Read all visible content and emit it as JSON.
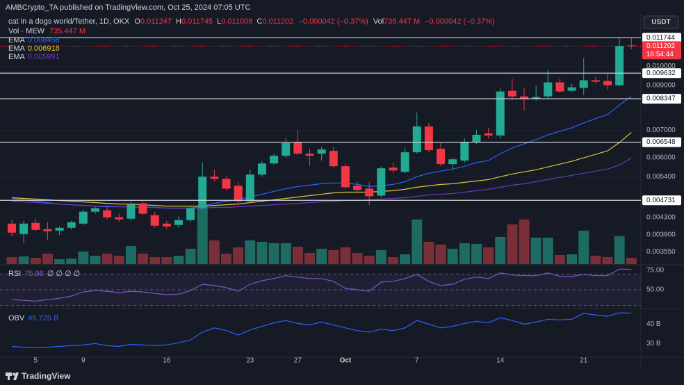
{
  "header": {
    "published": "AMBCrypto_TA published on TradingView.com, Oct 25, 2024 07:05 UTC",
    "currency": "USDT",
    "brand": "TradingView"
  },
  "chart_data": [
    {
      "type": "candlestick",
      "title": "cat in a dogs world/Tether, 1D, OKX",
      "ohlc_labels": [
        "O",
        "H",
        "L",
        "C"
      ],
      "change": "−0.000042 (−0.37%)",
      "log": true,
      "up_color": "#22ab94",
      "down_color": "#f23645",
      "categories": [
        null,
        null,
        "5",
        null,
        null,
        null,
        "9",
        null,
        null,
        null,
        null,
        null,
        null,
        "16",
        null,
        null,
        null,
        null,
        null,
        null,
        "23",
        null,
        null,
        null,
        "27",
        null,
        null,
        null,
        "Oct",
        null,
        null,
        null,
        null,
        null,
        "7",
        null,
        null,
        null,
        null,
        null,
        null,
        "14",
        null,
        null,
        null,
        null,
        null,
        null,
        "21",
        null,
        null,
        null,
        null
      ],
      "open": [
        0.004154,
        0.003919,
        0.004171,
        0.004027,
        0.003995,
        0.004058,
        0.004154,
        0.00444,
        0.004475,
        0.004303,
        0.00427,
        0.004653,
        0.004354,
        0.004154,
        0.004122,
        0.004237,
        0.004529,
        0.005398,
        0.005335,
        0.005131,
        0.004708,
        0.005462,
        0.005814,
        0.00607,
        0.006563,
        0.006141,
        0.006141,
        0.006237,
        0.005725,
        0.005131,
        0.005051,
        0.004858,
        0.00568,
        0.005548,
        0.006188,
        0.007152,
        0.00631,
        0.005792,
        0.005908,
        0.006563,
        0.006878,
        0.006797,
        0.008726,
        0.008457,
        0.008358,
        0.008457,
        0.009146,
        0.008726,
        0.008865,
        0.009255,
        0.009219,
        0.009005,
        0.011247
      ],
      "high": [
        0.004253,
        0.00422,
        0.00427,
        0.004187,
        0.00409,
        0.00422,
        0.004492,
        0.004564,
        0.004564,
        0.004389,
        0.004708,
        0.004708,
        0.00444,
        0.00422,
        0.00432,
        0.004599,
        0.005843,
        0.005613,
        0.005398,
        0.005252,
        0.005613,
        0.005887,
        0.006141,
        0.00669,
        0.007014,
        0.00631,
        0.006384,
        0.006384,
        0.005814,
        0.005252,
        0.005252,
        0.005725,
        0.005843,
        0.00636,
        0.007731,
        0.007293,
        0.006563,
        0.005999,
        0.00669,
        0.007014,
        0.007096,
        0.008865,
        0.009327,
        0.008865,
        0.00897,
        0.009811,
        0.009327,
        0.009075,
        0.010484,
        0.009438,
        0.009661,
        0.0117,
        0.011745
      ],
      "low": [
        0.003873,
        0.003724,
        0.00398,
        0.003798,
        0.003904,
        0.004011,
        0.004122,
        0.004389,
        0.004253,
        0.004187,
        0.00422,
        0.004354,
        0.004058,
        0.004027,
        0.004058,
        0.004187,
        0.004492,
        0.005252,
        0.004992,
        0.004599,
        0.004653,
        0.005398,
        0.005769,
        0.005999,
        0.006093,
        0.005725,
        0.005908,
        0.00568,
        0.005051,
        0.004934,
        0.004599,
        0.004801,
        0.005505,
        0.005505,
        0.006141,
        0.006188,
        0.005725,
        0.005613,
        0.005843,
        0.006486,
        0.00669,
        0.00669,
        0.008295,
        0.007823,
        0.008263,
        0.008358,
        0.008625,
        0.008659,
        0.008524,
        0.009075,
        0.00876,
        0.008935,
        0.011008
      ],
      "close": [
        0.003949,
        0.004154,
        0.004011,
        0.00398,
        0.004058,
        0.004187,
        0.00444,
        0.004529,
        0.004303,
        0.004253,
        0.004617,
        0.004389,
        0.004106,
        0.00409,
        0.004237,
        0.004529,
        0.005398,
        0.005335,
        0.005051,
        0.004708,
        0.005462,
        0.005814,
        0.00607,
        0.006511,
        0.006141,
        0.00607,
        0.006286,
        0.005725,
        0.005091,
        0.005012,
        0.004839,
        0.005658,
        0.005591,
        0.006188,
        0.007152,
        0.006261,
        0.005792,
        0.005951,
        0.006563,
        0.006824,
        0.006797,
        0.008693,
        0.008457,
        0.008358,
        0.008424,
        0.009146,
        0.008693,
        0.008899,
        0.009255,
        0.009182,
        0.009005,
        0.011208,
        0.011202
      ],
      "volume": {
        "name": "Vol · MEW",
        "up_color": "#1e6b63",
        "down_color": "#7a2e37",
        "vlim": [
          0,
          7000
        ],
        "last_label": "735.447 M",
        "values": [
          817,
          899,
          735,
          1226,
          572,
          654,
          1471,
          981,
          1226,
          981,
          2125,
          1226,
          817,
          817,
          981,
          1798,
          6783,
          2778,
          1226,
          1961,
          2778,
          2615,
          2452,
          2452,
          2043,
          1308,
          1798,
          1634,
          1961,
          1308,
          981,
          1634,
          817,
          1144,
          5230,
          2615,
          2288,
          1798,
          2452,
          2370,
          1961,
          3187,
          4658,
          5230,
          3105,
          3105,
          1062,
          1144,
          3922,
          981,
          817,
          3269,
          735.447
        ]
      },
      "series": [
        {
          "name": "EMA",
          "color": "#2962ff",
          "values": [
            0.004782,
            0.004745,
            0.004708,
            0.004672,
            0.004635,
            0.004617,
            0.004599,
            0.004581,
            0.004564,
            0.004564,
            0.004564,
            0.004564,
            0.004546,
            0.004529,
            0.004529,
            0.004529,
            0.004581,
            0.004653,
            0.004708,
            0.004745,
            0.00482,
            0.004895,
            0.004973,
            0.005051,
            0.005111,
            0.005151,
            0.005191,
            0.005211,
            0.005211,
            0.005171,
            0.005111,
            0.005131,
            0.005171,
            0.005252,
            0.005398,
            0.005505,
            0.00557,
            0.005635,
            0.005725,
            0.005843,
            0.005908,
            0.006141,
            0.006335,
            0.006486,
            0.006643,
            0.006824,
            0.006959,
            0.007096,
            0.007293,
            0.00747,
            0.007642,
            0.008059,
            0.008458
          ]
        },
        {
          "name": "EMA",
          "color": "#e3c23a",
          "values": [
            0.004801,
            0.004782,
            0.004764,
            0.004745,
            0.004726,
            0.004708,
            0.00469,
            0.004672,
            0.004653,
            0.004635,
            0.004635,
            0.004617,
            0.004599,
            0.004581,
            0.004581,
            0.004581,
            0.004581,
            0.004599,
            0.004617,
            0.004635,
            0.004672,
            0.004708,
            0.004745,
            0.004782,
            0.00482,
            0.004858,
            0.004895,
            0.004934,
            0.004953,
            0.004953,
            0.004953,
            0.004973,
            0.004992,
            0.005031,
            0.005091,
            0.005131,
            0.005171,
            0.005191,
            0.005231,
            0.005272,
            0.005313,
            0.005398,
            0.005483,
            0.005548,
            0.005613,
            0.005703,
            0.005792,
            0.005885,
            0.005999,
            0.006117,
            0.006237,
            0.006537,
            0.006918
          ]
        },
        {
          "name": "EMA",
          "color": "#673ab7",
          "values": [
            0.004708,
            0.00469,
            0.004672,
            0.004653,
            0.004635,
            0.004617,
            0.004599,
            0.004581,
            0.004581,
            0.004564,
            0.004564,
            0.004546,
            0.004546,
            0.004529,
            0.004529,
            0.004529,
            0.004529,
            0.004546,
            0.004546,
            0.004564,
            0.004581,
            0.004599,
            0.004617,
            0.004635,
            0.004653,
            0.004672,
            0.00469,
            0.004708,
            0.004726,
            0.004726,
            0.004745,
            0.004764,
            0.004782,
            0.004801,
            0.004839,
            0.004876,
            0.004895,
            0.004914,
            0.004953,
            0.004992,
            0.005031,
            0.005091,
            0.005151,
            0.005191,
            0.005252,
            0.005313,
            0.005377,
            0.005441,
            0.005505,
            0.00557,
            0.005635,
            0.005769,
            0.005991
          ]
        }
      ],
      "levels": [
        0.011744,
        0.009632,
        0.008347,
        0.006548,
        0.004731
      ],
      "countdown": "16:54:44",
      "ylim": [
        0.003313,
        0.013412
      ],
      "yticks": [
        {
          "value": 0.01,
          "label": "0.010000"
        },
        {
          "value": 0.009,
          "label": "0.009000"
        },
        {
          "value": 0.007,
          "label": "0.007000"
        },
        {
          "value": 0.006,
          "label": "0.006000"
        },
        {
          "value": 0.0054,
          "label": "0.005400"
        },
        {
          "value": 0.0043,
          "label": "0.004300"
        },
        {
          "value": 0.0039,
          "label": "0.003900"
        },
        {
          "value": 0.00355,
          "label": "0.003550"
        }
      ]
    },
    {
      "type": "line",
      "name": "RSI",
      "hidden_inputs": "∅ ∅ ∅ ∅",
      "color": "#7e57c2",
      "values": [
        37.5,
        36.6,
        35.7,
        37.5,
        39.3,
        42.0,
        47.3,
        49.1,
        48.2,
        46.4,
        48.2,
        47.3,
        45.5,
        43.8,
        44.6,
        49.1,
        57.1,
        55.4,
        52.7,
        48.2,
        57.1,
        61.6,
        64.3,
        67.9,
        66.1,
        64.3,
        64.3,
        60.7,
        51.8,
        50.0,
        48.2,
        59.8,
        60.7,
        64.3,
        69.6,
        60.7,
        55.4,
        57.1,
        63.4,
        66.1,
        64.3,
        71.4,
        68.8,
        67.9,
        67.9,
        71.4,
        67.0,
        67.0,
        69.6,
        67.9,
        67.9,
        76.3,
        75.98
      ],
      "band": [
        30,
        70
      ],
      "ylim": [
        28,
        80
      ],
      "yticks": [
        {
          "value": 75,
          "label": "75.00"
        },
        {
          "value": 50,
          "label": "50.00"
        }
      ]
    },
    {
      "type": "line",
      "name": "OBV",
      "color": "#2962ff",
      "last_label": "45.725 B",
      "values": [
        28.5,
        28.1,
        27.8,
        28.1,
        28.5,
        28.9,
        29.3,
        30.0,
        28.9,
        28.5,
        29.6,
        29.3,
        28.9,
        29.3,
        30.4,
        31.9,
        35.9,
        38.1,
        36.7,
        34.4,
        37.0,
        38.9,
        40.7,
        41.9,
        40.4,
        39.6,
        41.1,
        39.6,
        38.1,
        36.7,
        35.9,
        37.4,
        36.7,
        38.1,
        41.9,
        40.0,
        38.1,
        38.9,
        40.4,
        41.5,
        40.7,
        43.3,
        41.9,
        40.0,
        41.1,
        42.6,
        42.2,
        42.6,
        45.6,
        44.8,
        44.1,
        45.9,
        45.725
      ],
      "ylim": [
        23.3,
        47.0
      ],
      "yticks": [
        {
          "value": 40,
          "label": "40 B"
        },
        {
          "value": 30,
          "label": "30 B"
        }
      ]
    }
  ]
}
